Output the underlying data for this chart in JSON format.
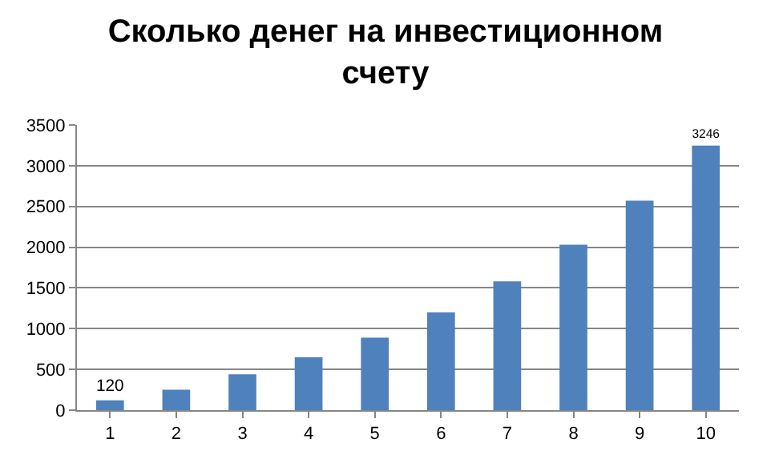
{
  "chart_data": {
    "type": "bar",
    "title": "Сколько денег на инвестиционном счету",
    "categories": [
      "1",
      "2",
      "3",
      "4",
      "5",
      "6",
      "7",
      "8",
      "9",
      "10"
    ],
    "values": [
      120,
      250,
      440,
      650,
      890,
      1200,
      1580,
      2030,
      2570,
      3246
    ],
    "value_labels": [
      "120",
      null,
      null,
      null,
      null,
      null,
      null,
      null,
      null,
      "3246"
    ],
    "color": "#4f81bd",
    "ylim": [
      0,
      3500
    ],
    "yticks": [
      0,
      500,
      1000,
      1500,
      2000,
      2500,
      3000,
      3500
    ],
    "grid": "y",
    "legend": false
  }
}
